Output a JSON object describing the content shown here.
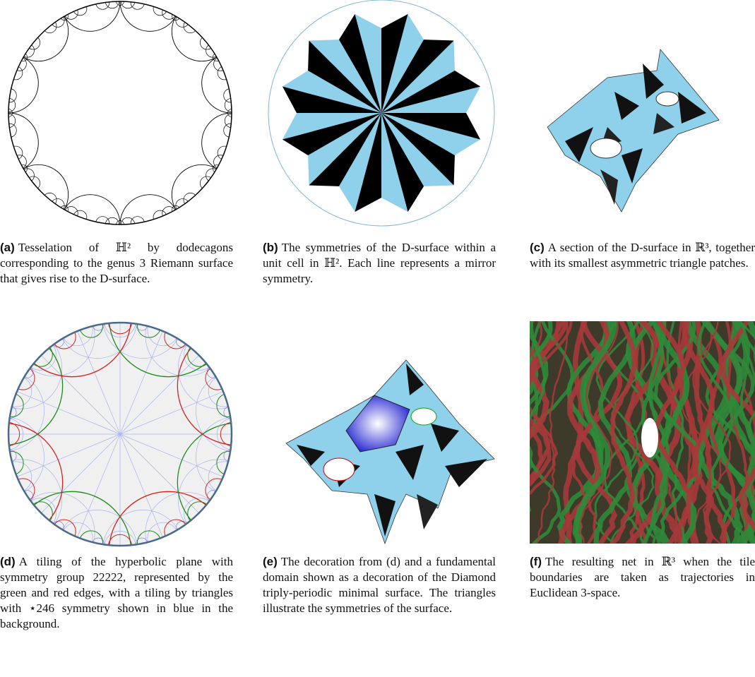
{
  "figures": [
    {
      "label": "(a)",
      "caption": "Tesselation of ℍ² by dodecagons corresponding to the genus 3 Riemann surface that gives rise to the D-surface."
    },
    {
      "label": "(b)",
      "caption": "The symmetries of the D-surface within a unit cell in ℍ². Each line represents a mirror symmetry."
    },
    {
      "label": "(c)",
      "caption": "A section of the D-surface in ℝ³, together with its smallest asymmetric triangle patches."
    },
    {
      "label": "(d)",
      "caption": "A tiling of the hyperbolic plane with symmetry group 22222, represented by the green and red edges, with a tiling by triangles with ⋆246 symmetry shown in blue in the background."
    },
    {
      "label": "(e)",
      "caption": "The decoration from (d) and a fundamental domain shown as a decoration of the Diamond triply-periodic minimal surface. The triangles illustrate the symmetries of the surface."
    },
    {
      "label": "(f)",
      "caption": "The resulting net in ℝ³ when the tile boundaries are taken as trajectories in Euclidean 3-space."
    }
  ]
}
